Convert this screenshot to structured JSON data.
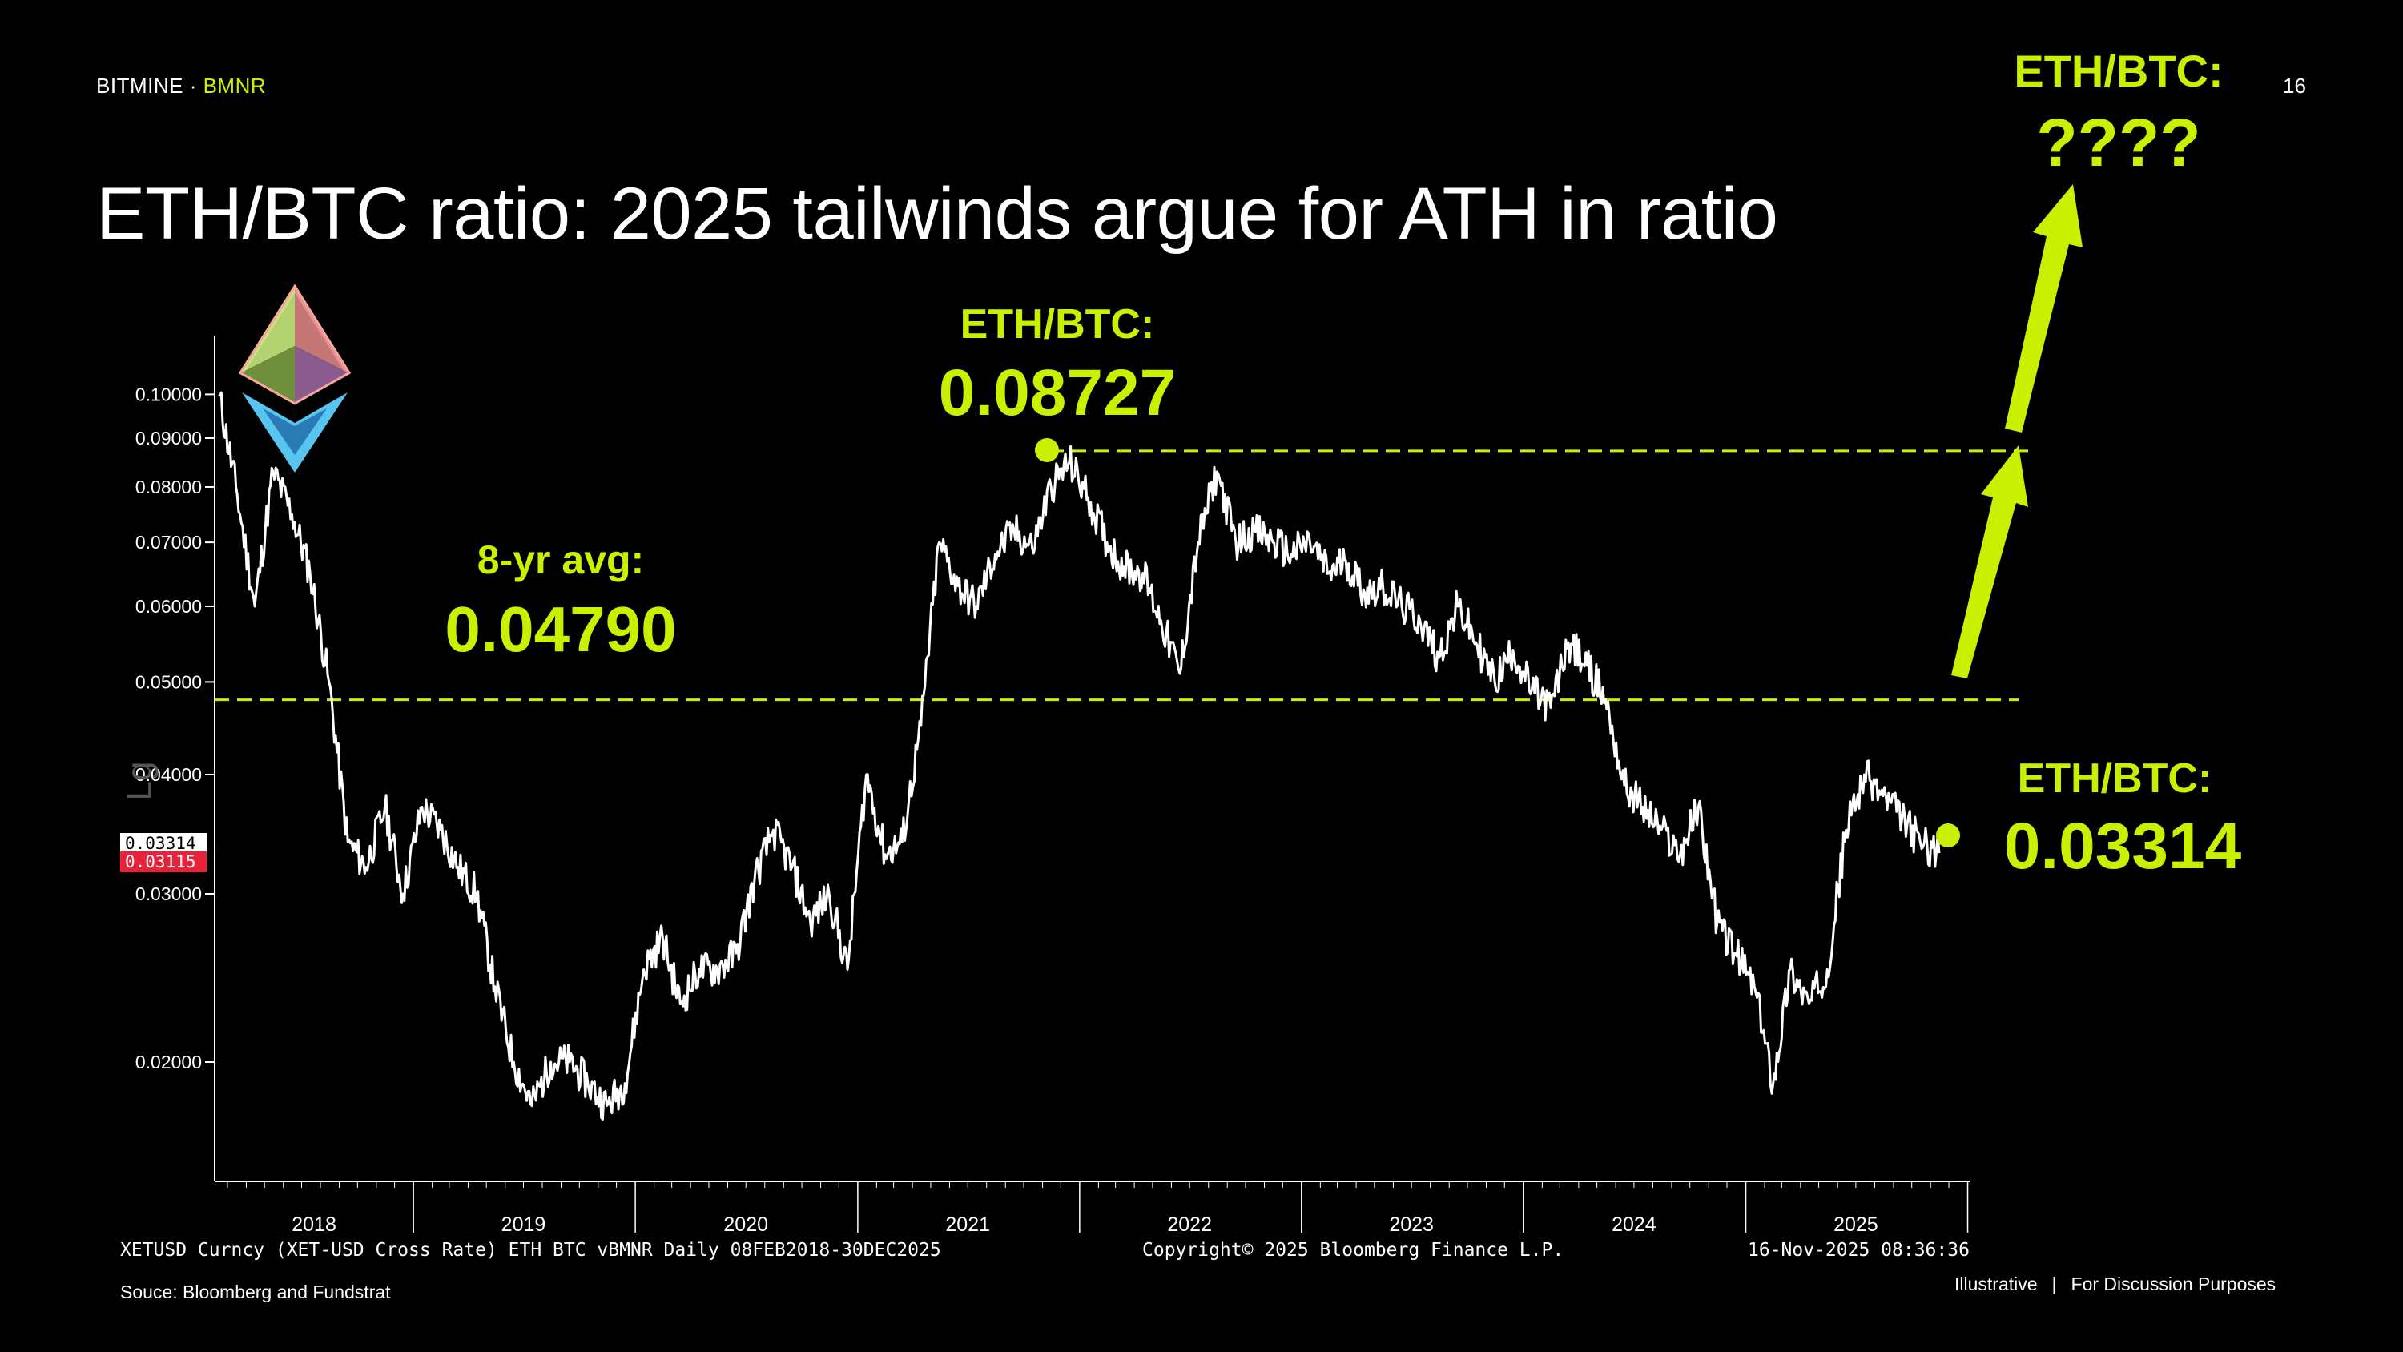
{
  "header": {
    "brand_main": "BITMINE",
    "brand_sep": "·",
    "brand_ticker": "BMNR",
    "page_number": "16",
    "title": "ETH/BTC ratio: 2025 tailwinds argue for ATH in ratio"
  },
  "callouts": {
    "avg_label": "8-yr avg:",
    "avg_value": "0.04790",
    "peak_label": "ETH/BTC:",
    "peak_value": "0.08727",
    "current_label": "ETH/BTC:",
    "current_value": "0.03314",
    "future_label": "ETH/BTC:",
    "future_value": "????"
  },
  "chart_info": {
    "left_footer": "XETUSD Curncy (XET-USD Cross Rate) ETH BTC vBMNR Daily 08FEB2018-30DEC2025",
    "center_footer": "Copyright© 2025 Bloomberg Finance L.P.",
    "right_footer": "16-Nov-2025 08:36:36",
    "scale_label": "Lg",
    "price_tag_white": "0.03314",
    "price_tag_red": "0.03115"
  },
  "footer": {
    "source": "Souce: Bloomberg and Fundstrat",
    "illustrative": "Illustrative",
    "divider": "|",
    "discussion": "For Discussion Purposes"
  },
  "colors": {
    "accent": "#c9f000",
    "line": "#ffffff",
    "background": "#000000",
    "red_tag": "#e8223a"
  },
  "chart_data": {
    "type": "line",
    "y_scale": "log",
    "ylim": [
      0.015,
      0.115
    ],
    "y_ticks": [
      "0.02000",
      "0.03000",
      "0.04000",
      "0.05000",
      "0.06000",
      "0.07000",
      "0.08000",
      "0.09000",
      "0.10000"
    ],
    "x_ticks": [
      "2018",
      "2019",
      "2020",
      "2021",
      "2022",
      "2023",
      "2024",
      "2025"
    ],
    "x_range": [
      "2018-02-08",
      "2025-12-30"
    ],
    "reference_lines": [
      {
        "label": "8-yr avg",
        "value": 0.0479
      },
      {
        "label": "ETH/BTC peak",
        "value": 0.08727
      }
    ],
    "series": [
      {
        "x": [
          "2018-02",
          "2018-03",
          "2018-04",
          "2018-05",
          "2018-06",
          "2018-07",
          "2018-08",
          "2018-09",
          "2018-10",
          "2018-11",
          "2018-12",
          "2019-01",
          "2019-02",
          "2019-03",
          "2019-04",
          "2019-05",
          "2019-06",
          "2019-07",
          "2019-08",
          "2019-09",
          "2019-10",
          "2019-11",
          "2019-12",
          "2020-01",
          "2020-02",
          "2020-03",
          "2020-04",
          "2020-05",
          "2020-06",
          "2020-07",
          "2020-08",
          "2020-09",
          "2020-10",
          "2020-11",
          "2020-12",
          "2021-01",
          "2021-02",
          "2021-03",
          "2021-04",
          "2021-05",
          "2021-06",
          "2021-07",
          "2021-08",
          "2021-09",
          "2021-10",
          "2021-11",
          "2021-12",
          "2022-01",
          "2022-02",
          "2022-03",
          "2022-04",
          "2022-05",
          "2022-06",
          "2022-07",
          "2022-08",
          "2022-09",
          "2022-10",
          "2022-11",
          "2022-12",
          "2023-01",
          "2023-02",
          "2023-03",
          "2023-04",
          "2023-05",
          "2023-06",
          "2023-07",
          "2023-08",
          "2023-09",
          "2023-10",
          "2023-11",
          "2023-12",
          "2024-01",
          "2024-02",
          "2024-03",
          "2024-04",
          "2024-05",
          "2024-06",
          "2024-07",
          "2024-08",
          "2024-09",
          "2024-10",
          "2024-11",
          "2024-12",
          "2025-01",
          "2025-02",
          "2025-03",
          "2025-04",
          "2025-05",
          "2025-06",
          "2025-07",
          "2025-08",
          "2025-09",
          "2025-10",
          "2025-11"
        ],
        "values": [
          0.1,
          0.08,
          0.06,
          0.083,
          0.075,
          0.065,
          0.05,
          0.034,
          0.032,
          0.037,
          0.03,
          0.037,
          0.035,
          0.032,
          0.03,
          0.024,
          0.02,
          0.018,
          0.02,
          0.02,
          0.019,
          0.018,
          0.019,
          0.025,
          0.027,
          0.023,
          0.025,
          0.025,
          0.026,
          0.031,
          0.035,
          0.032,
          0.028,
          0.03,
          0.025,
          0.04,
          0.033,
          0.034,
          0.045,
          0.07,
          0.063,
          0.06,
          0.068,
          0.072,
          0.069,
          0.08,
          0.085,
          0.078,
          0.07,
          0.066,
          0.065,
          0.058,
          0.051,
          0.07,
          0.083,
          0.07,
          0.072,
          0.07,
          0.068,
          0.07,
          0.065,
          0.067,
          0.062,
          0.063,
          0.06,
          0.058,
          0.053,
          0.06,
          0.055,
          0.05,
          0.054,
          0.049,
          0.047,
          0.055,
          0.052,
          0.048,
          0.039,
          0.037,
          0.035,
          0.033,
          0.037,
          0.028,
          0.026,
          0.024,
          0.019,
          0.025,
          0.023,
          0.025,
          0.035,
          0.04,
          0.038,
          0.036,
          0.034,
          0.0331
        ]
      }
    ]
  }
}
